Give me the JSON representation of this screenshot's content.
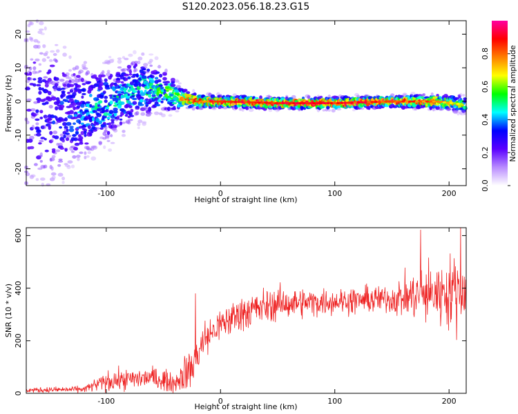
{
  "title": "S120.2023.056.18.23.G15",
  "chart_data": [
    {
      "type": "heatmap",
      "xlabel": "Height of straight line (km)",
      "ylabel": "Frequency (Hz)",
      "xlim": [
        -170,
        215
      ],
      "ylim": [
        -25,
        24
      ],
      "xticks": [
        -100,
        0,
        100,
        200
      ],
      "yticks": [
        -20,
        -10,
        0,
        10,
        20
      ],
      "colorbar": {
        "label": "Normalized spectral amplitude",
        "range": [
          0,
          1
        ],
        "ticks": [
          0.0,
          0.2,
          0.4,
          0.6,
          0.8
        ],
        "colors": [
          "#ffffff",
          "#b98cff",
          "#5a00ff",
          "#0000ff",
          "#00ffff",
          "#00ff00",
          "#ffff00",
          "#ff8000",
          "#ff0000",
          "#ff00a0"
        ]
      },
      "ridge": [
        {
          "x": -170,
          "freq": -2,
          "spread": 20,
          "amp": 0.25
        },
        {
          "x": -130,
          "freq": -4,
          "spread": 10,
          "amp": 0.35
        },
        {
          "x": -100,
          "freq": -1,
          "spread": 7,
          "amp": 0.45
        },
        {
          "x": -70,
          "freq": 4,
          "spread": 6,
          "amp": 0.45
        },
        {
          "x": -50,
          "freq": 3,
          "spread": 4,
          "amp": 0.55
        },
        {
          "x": -35,
          "freq": 1,
          "spread": 2,
          "amp": 0.7
        },
        {
          "x": -20,
          "freq": 0,
          "spread": 1.2,
          "amp": 0.85
        },
        {
          "x": 0,
          "freq": 0,
          "spread": 1,
          "amp": 0.95
        },
        {
          "x": 50,
          "freq": -0.5,
          "spread": 1,
          "amp": 0.95
        },
        {
          "x": 100,
          "freq": -0.5,
          "spread": 1,
          "amp": 0.95
        },
        {
          "x": 150,
          "freq": 0,
          "spread": 1,
          "amp": 0.9
        },
        {
          "x": 190,
          "freq": 0,
          "spread": 1.2,
          "amp": 0.85
        },
        {
          "x": 215,
          "freq": -1,
          "spread": 1.5,
          "amp": 0.6
        }
      ]
    },
    {
      "type": "line",
      "xlabel": "Height of straight line (km)",
      "ylabel": "SNR (10 * v/v)",
      "xlim": [
        -170,
        215
      ],
      "ylim": [
        0,
        630
      ],
      "xticks": [
        -100,
        0,
        100,
        200
      ],
      "yticks": [
        0,
        200,
        400,
        600
      ],
      "color": "#ee2222",
      "envelope": [
        {
          "x": -170,
          "mean": 12,
          "noise": 8
        },
        {
          "x": -120,
          "mean": 15,
          "noise": 10
        },
        {
          "x": -100,
          "mean": 45,
          "noise": 30
        },
        {
          "x": -60,
          "mean": 60,
          "noise": 35
        },
        {
          "x": -40,
          "mean": 40,
          "noise": 30
        },
        {
          "x": -25,
          "mean": 100,
          "noise": 70
        },
        {
          "x": -15,
          "mean": 200,
          "noise": 60
        },
        {
          "x": 0,
          "mean": 260,
          "noise": 50
        },
        {
          "x": 20,
          "mean": 310,
          "noise": 60
        },
        {
          "x": 50,
          "mean": 340,
          "noise": 50
        },
        {
          "x": 100,
          "mean": 350,
          "noise": 40
        },
        {
          "x": 150,
          "mean": 360,
          "noise": 45
        },
        {
          "x": 170,
          "mean": 370,
          "noise": 80
        },
        {
          "x": 190,
          "mean": 380,
          "noise": 100
        },
        {
          "x": 215,
          "mean": 400,
          "noise": 120
        }
      ],
      "peaks": [
        {
          "x": -22,
          "y": 380
        },
        {
          "x": 175,
          "y": 622
        },
        {
          "x": 210,
          "y": 632
        }
      ]
    }
  ]
}
